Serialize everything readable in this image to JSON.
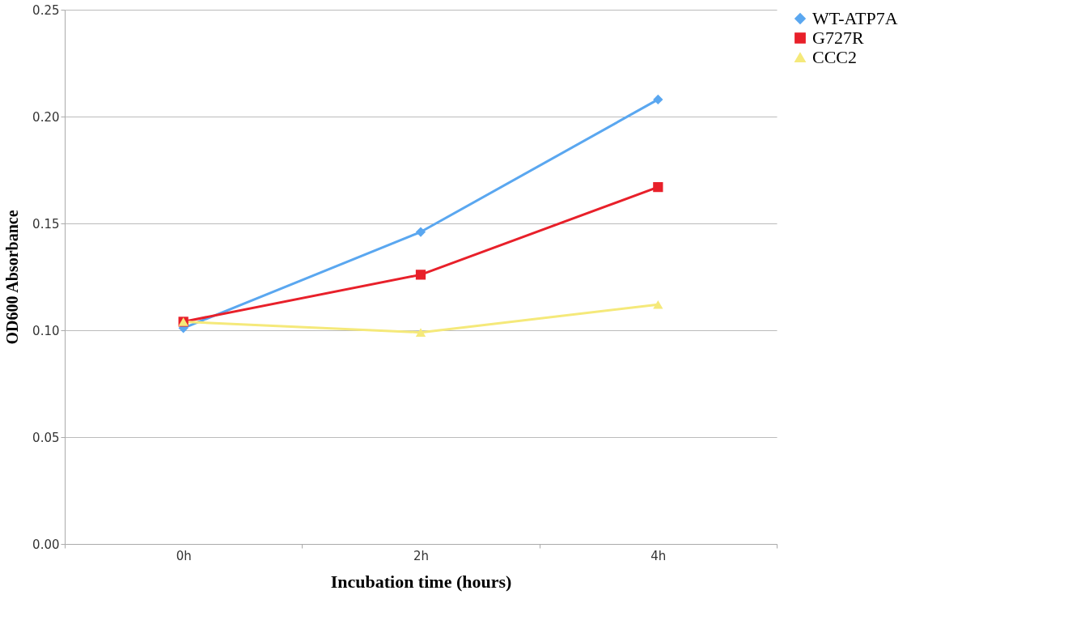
{
  "chart_data": {
    "type": "line",
    "xlabel": "Incubation time (hours)",
    "ylabel": "OD600 Absorbance",
    "categories": [
      "0h",
      "2h",
      "4h"
    ],
    "series": [
      {
        "name": "WT-ATP7A",
        "color": "#5aa7f0",
        "marker": "diamond",
        "values": [
          0.101,
          0.146,
          0.208
        ]
      },
      {
        "name": "G727R",
        "color": "#e8202a",
        "marker": "square",
        "values": [
          0.104,
          0.126,
          0.167
        ]
      },
      {
        "name": "CCC2",
        "color": "#f5e97a",
        "marker": "triangle",
        "values": [
          0.104,
          0.099,
          0.112
        ]
      }
    ],
    "ylim": [
      0,
      0.25
    ],
    "yticks": [
      {
        "value": 0,
        "label": "0.00"
      },
      {
        "value": 0.05,
        "label": "0.05"
      },
      {
        "value": 0.1,
        "label": "0.10"
      },
      {
        "value": 0.15,
        "label": "0.15"
      },
      {
        "value": 0.2,
        "label": "0.20"
      },
      {
        "value": 0.25,
        "label": "0.25"
      }
    ],
    "grid": "y",
    "legend": "right",
    "line_style": "solid"
  }
}
